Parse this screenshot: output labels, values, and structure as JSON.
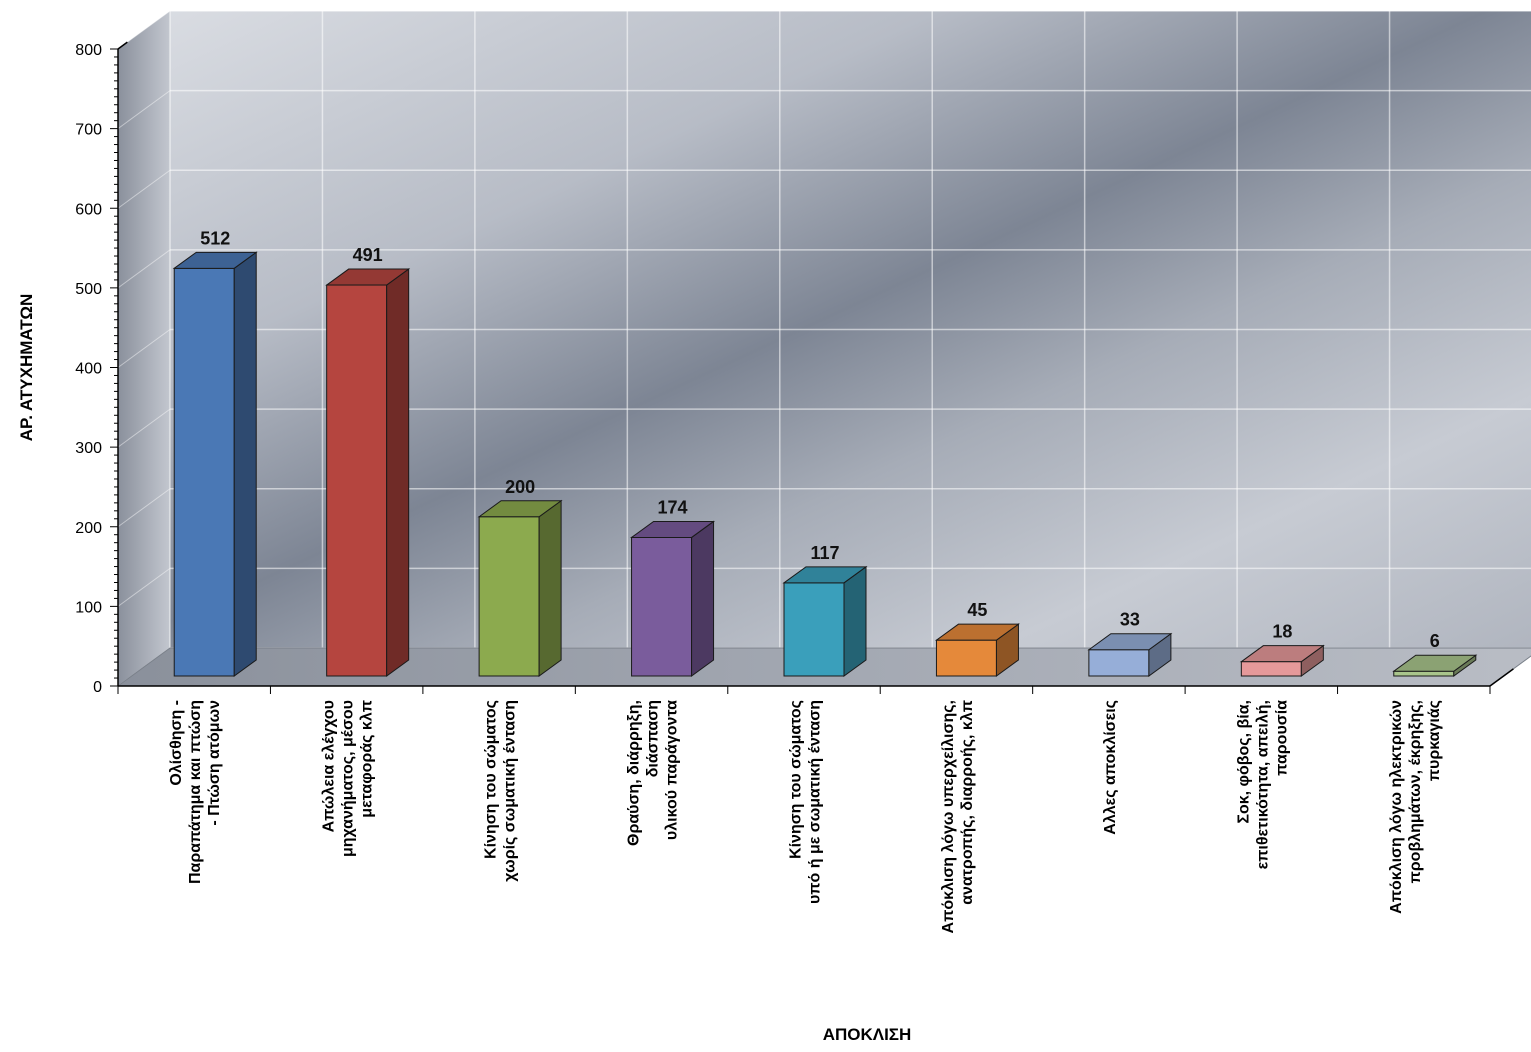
{
  "chart_data": {
    "type": "bar",
    "title": "",
    "xlabel": "ΑΠΟΚΛΙΣΗ",
    "ylabel": "ΑΡ. ΑΤΥΧΗΜΑΤΩΝ",
    "ylim": [
      0,
      800
    ],
    "yticks": [
      0,
      100,
      200,
      300,
      400,
      500,
      600,
      700,
      800
    ],
    "grid": true,
    "legend": "none",
    "categories": [
      [
        "Ολίσθηση -",
        "Παραπάτημα και πτώση",
        "- Πτώση ατόμων"
      ],
      [
        "Απώλεια ελέγχου",
        "μηχανήματος, μέσου",
        "μεταφοράς κλπ"
      ],
      [
        "Κίνηση του σώματος",
        "χωρίς σωματική ένταση"
      ],
      [
        "Θραύση, διάρρηξη,",
        "διάσπαση",
        "υλικού παράγοντα"
      ],
      [
        "Κίνηση του σώματος",
        "υπό ή με σωματική ένταση"
      ],
      [
        "Απόκλιση λόγω υπερχείλισης,",
        "ανατροπής, διαρροής, κλπ"
      ],
      [
        "Αλλες αποκλίσεις"
      ],
      [
        "Σοκ, φόβος, βία,",
        "επιθετικότητα, απειλή,",
        "παρουσία"
      ],
      [
        "Απόκλιση λόγω ηλεκτρικών",
        "προβλημάτων, έκρηξης,",
        "πυρκαγιάς"
      ]
    ],
    "values": [
      512,
      491,
      200,
      174,
      117,
      45,
      33,
      18,
      6
    ],
    "colors": [
      "#4a78b5",
      "#b5453f",
      "#8caa4e",
      "#7a5c9c",
      "#3a9fbb",
      "#e5893a",
      "#96aed8",
      "#e5999a",
      "#a9c58c"
    ]
  }
}
